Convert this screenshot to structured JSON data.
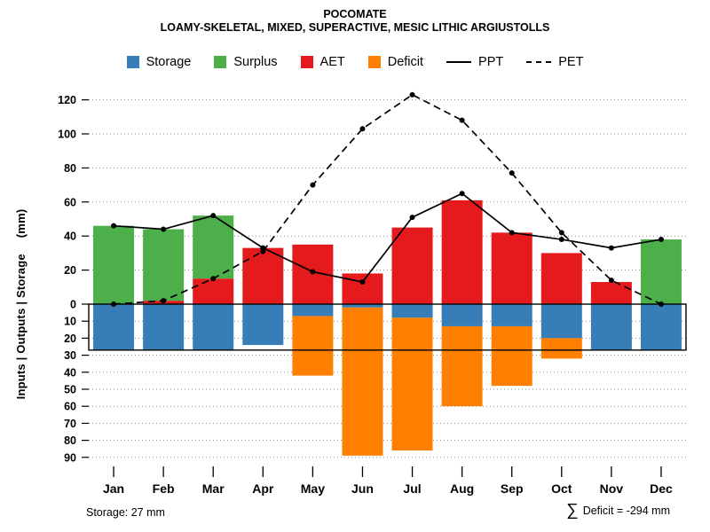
{
  "chart_data": {
    "type": "bar",
    "title": "POCOMATE",
    "subtitle": "LOAMY-SKELETAL, MIXED, SUPERACTIVE, MESIC LITHIC ARGIUSTOLLS",
    "ylabel": "Inputs | Outputs | Storage",
    "ylabel_units": "(mm)",
    "units": "mm",
    "legend_position": "top",
    "grid": true,
    "ylim_mm": [
      -90,
      125
    ],
    "categories": [
      "Jan",
      "Feb",
      "Mar",
      "Apr",
      "May",
      "Jun",
      "Jul",
      "Aug",
      "Sep",
      "Oct",
      "Nov",
      "Dec"
    ],
    "series": [
      {
        "name": "Storage",
        "type": "bar-below",
        "color": "#377EB8",
        "values": [
          27,
          27,
          27,
          24,
          7,
          2,
          8,
          13,
          13,
          20,
          27,
          27
        ]
      },
      {
        "name": "Surplus",
        "type": "bar-above-top",
        "color": "#4DAF4A",
        "values": [
          46,
          42,
          37,
          0,
          0,
          0,
          0,
          0,
          0,
          0,
          0,
          38
        ]
      },
      {
        "name": "AET",
        "type": "bar-above-base",
        "color": "#E41A1C",
        "values": [
          0,
          2,
          15,
          33,
          35,
          18,
          45,
          61,
          42,
          30,
          13,
          0
        ]
      },
      {
        "name": "Deficit",
        "type": "bar-below-stacked",
        "color": "#FF7F00",
        "values": [
          0,
          0,
          0,
          0,
          35,
          87,
          78,
          47,
          35,
          12,
          0,
          0
        ]
      },
      {
        "name": "PPT",
        "type": "line-solid",
        "color": "#000000",
        "values": [
          46,
          44,
          52,
          33,
          19,
          13,
          51,
          65,
          42,
          38,
          33,
          38
        ]
      },
      {
        "name": "PET",
        "type": "line-dashed",
        "color": "#000000",
        "values": [
          0,
          2,
          15,
          31,
          70,
          103,
          123,
          108,
          77,
          42,
          14,
          0
        ]
      }
    ],
    "y_ticks_above": [
      0,
      20,
      40,
      60,
      80,
      100,
      120
    ],
    "y_ticks_below": [
      10,
      20,
      30,
      40,
      50,
      60,
      70,
      80,
      90
    ],
    "storage_capacity_mm": 27,
    "annotations": {
      "storage_note": "Storage: 27 mm",
      "deficit_sigma": "∑",
      "deficit_note": "Deficit = -294 mm"
    }
  }
}
